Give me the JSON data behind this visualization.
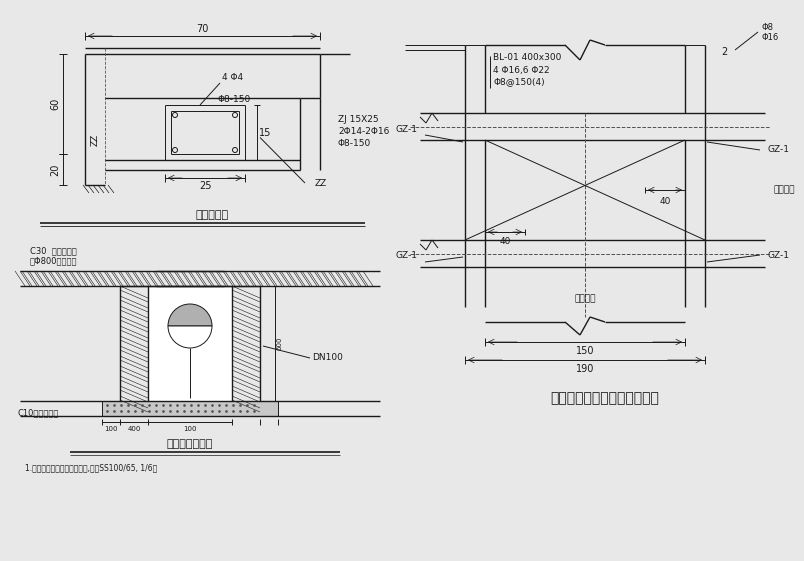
{
  "bg_color": "#e8e8e8",
  "line_color": "#1a1a1a",
  "white": "#ffffff",
  "title1": "给水管支架",
  "title2": "消火栓井大样图",
  "title3": "共用管沟交叉处顶板配筋大样",
  "label_70": "70",
  "label_60": "60",
  "label_20": "20",
  "label_25": "25",
  "label_15": "15",
  "label_ZZ_left": "ZZ",
  "label_ZZ_right": "ZZ",
  "label_4phi4": "4 Φ4",
  "label_phi8_150": "Φ8-150",
  "label_ZJ": "ZJ 15X25",
  "label_2phi14": "2Φ14-2Φ16",
  "label_phi8_150b": "Φ8-150",
  "label_c30": "C30  混凝土井圈",
  "label_phi800": "或Φ800铸铁井圈",
  "label_dn100": "DN100",
  "label_c10": "C10混凝土基础",
  "label_BL": "BL-01 400x300",
  "label_4phi": "4 Φ16,6 Φ22",
  "label_phi8_150c": "Φ8@150(4)",
  "label_GZ1": "GZ-1",
  "label_40_top": "40",
  "label_40_bot": "40",
  "label_150": "150",
  "label_190": "190",
  "label_2": "2",
  "label_phi8_right": "Φ8",
  "label_phi16_right": "Φ16",
  "label_shared_right": "共用管沟",
  "label_shared_mid": "共用管沟",
  "note1": "1.消火栓采用地下半球消火栓,型号SS100/65, 1/6型"
}
